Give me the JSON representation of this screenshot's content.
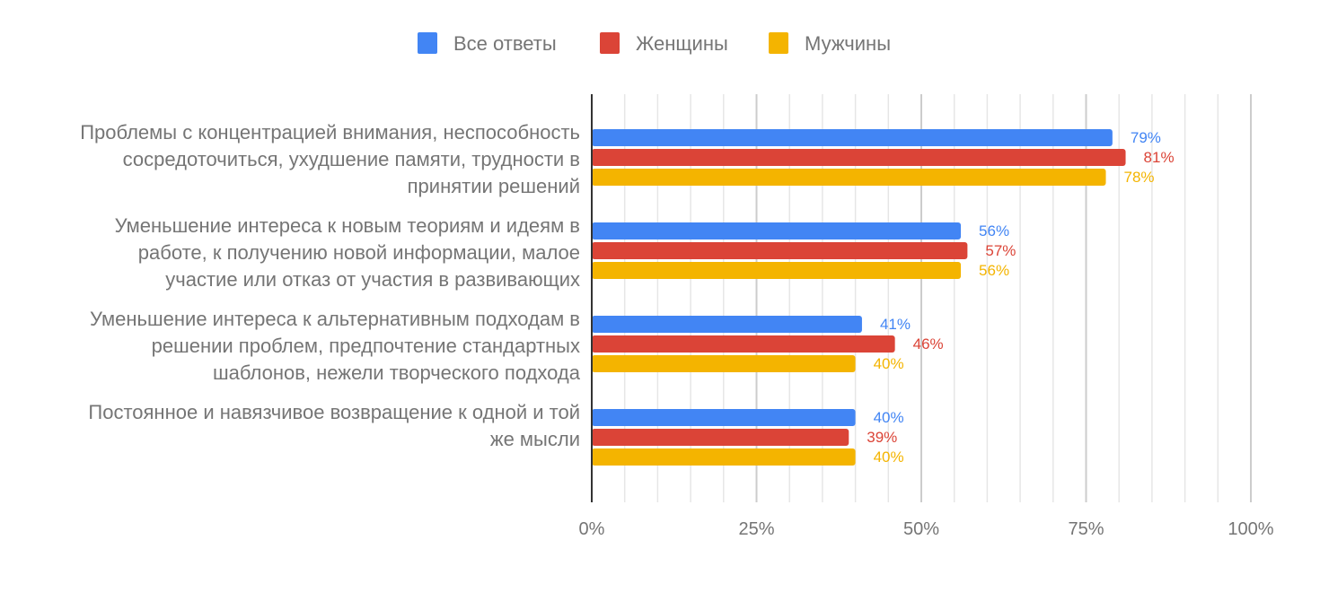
{
  "chart_data": {
    "type": "bar",
    "orientation": "horizontal",
    "categories": [
      [
        "Проблемы с концентрацией внимания, неспособность",
        "сосредоточиться, ухудшение памяти, трудности в",
        "принятии решений"
      ],
      [
        "Уменьшение интереса к новым теориям и идеям в",
        "работе, к получению новой информации, малое",
        "участие или отказ от участия в развивающих"
      ],
      [
        "Уменьшение интереса к альтернативным подходам в",
        "решении проблем, предпочтение стандартных",
        "шаблонов, нежели творческого подхода"
      ],
      [
        "Постоянное и навязчивое возвращение к одной и той",
        "же мысли"
      ]
    ],
    "series": [
      {
        "name": "Все ответы",
        "color": "#4285f4",
        "values": [
          79,
          56,
          41,
          40
        ],
        "labels": [
          "79%",
          "56%",
          "41%",
          "40%"
        ]
      },
      {
        "name": "Женщины",
        "color": "#db4437",
        "values": [
          81,
          57,
          46,
          39
        ],
        "labels": [
          "81%",
          "57%",
          "46%",
          "39%"
        ]
      },
      {
        "name": "Мужчины",
        "color": "#f4b400",
        "values": [
          78,
          56,
          40,
          40
        ],
        "labels": [
          "78%",
          "56%",
          "40%",
          "40%"
        ]
      }
    ],
    "xlim": [
      0,
      100
    ],
    "xticks": [
      0,
      25,
      50,
      75,
      100
    ],
    "xtick_labels": [
      "0%",
      "25%",
      "50%",
      "75%",
      "100%"
    ],
    "minor_grid_step": 5,
    "grid": true,
    "legend": "top-center",
    "title": "",
    "xlabel": "",
    "ylabel": ""
  }
}
